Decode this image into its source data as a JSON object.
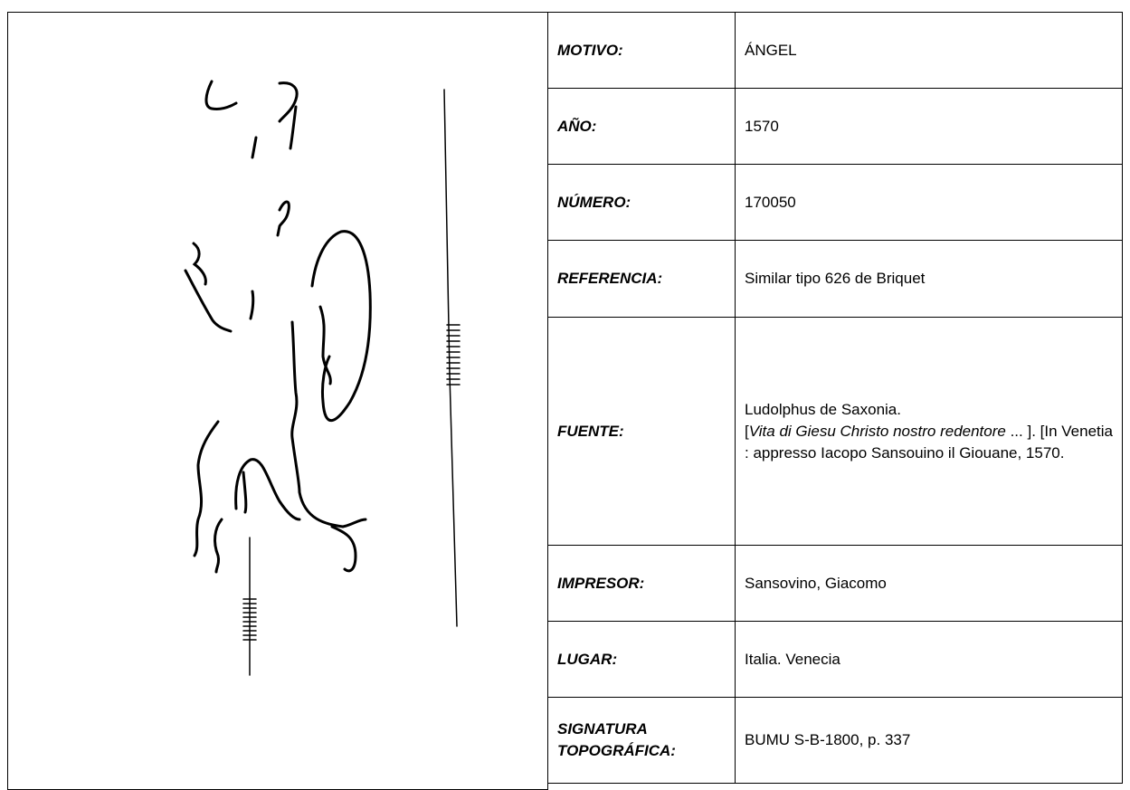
{
  "table": {
    "rows": [
      {
        "label": "MOTIVO:",
        "value": "ÁNGEL"
      },
      {
        "label": "AÑO:",
        "value": "1570"
      },
      {
        "label": "NÚMERO:",
        "value": "170050"
      },
      {
        "label": "REFERENCIA:",
        "value": "Similar tipo 626 de Briquet"
      },
      {
        "label": "FUENTE:",
        "value_lines": [
          "Ludolphus de Saxonia.",
          "[",
          "Vita di Giesu Christo nostro redentore",
          " ... ]. [In Venetia : appresso Iacopo Sansouino il Giouane, 1570."
        ]
      },
      {
        "label": "IMPRESOR:",
        "value": "Sansovino, Giacomo"
      },
      {
        "label": "LUGAR:",
        "value": "Italia. Venecia"
      },
      {
        "label": "SIGNATURA TOPOGRÁFICA:",
        "value": "BUMU S-B-1800, p. 337"
      }
    ]
  }
}
